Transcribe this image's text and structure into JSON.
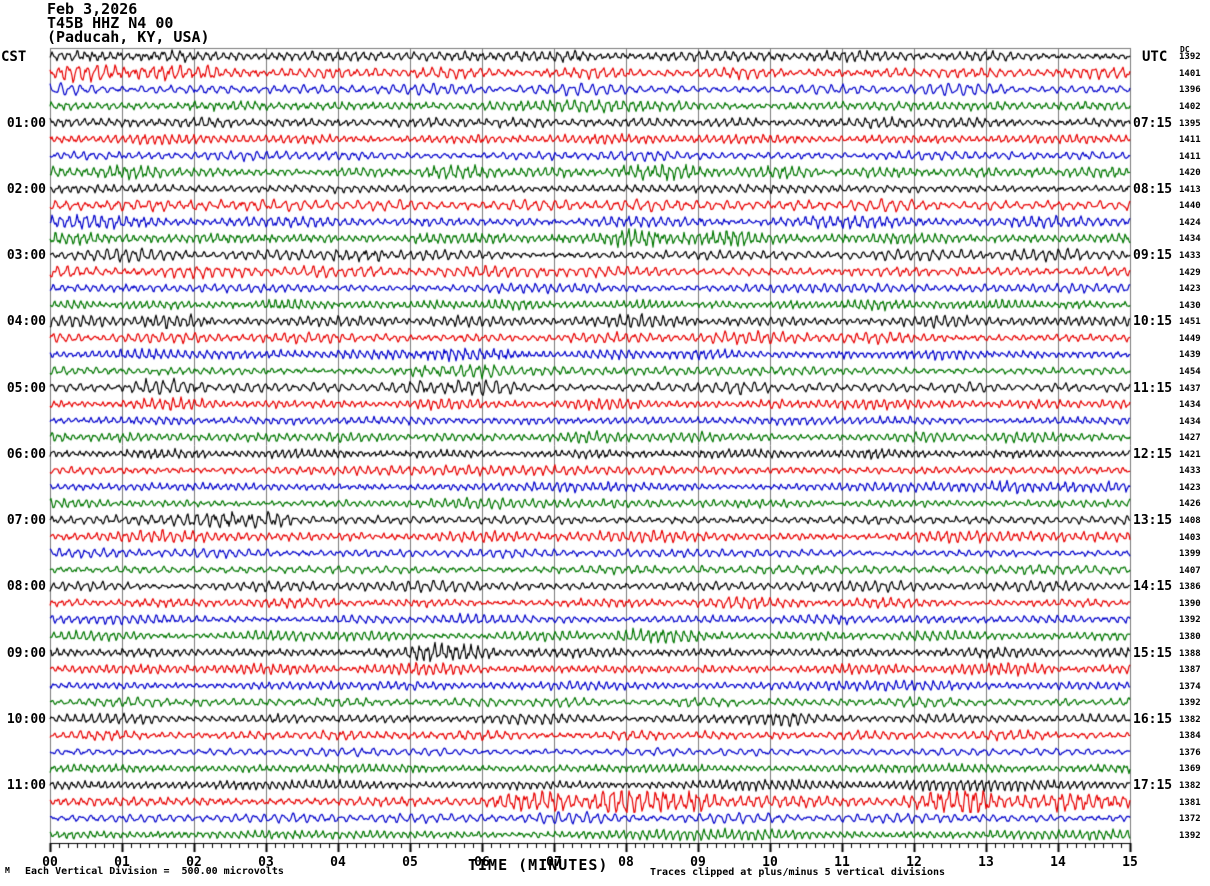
{
  "header": {
    "date": "Feb 3,2026",
    "station": "T45B HHZ N4 00",
    "location": "(Paducah, KY, USA)"
  },
  "axes": {
    "left_timezone": "CST",
    "right_timezone": "UTC",
    "dc_header": "DC",
    "hour_label_rows": [
      4,
      8,
      12,
      16,
      20,
      24,
      28,
      32,
      36,
      40,
      44
    ],
    "left_hour_labels": [
      "01:00",
      "02:00",
      "03:00",
      "04:00",
      "05:00",
      "06:00",
      "07:00",
      "08:00",
      "09:00",
      "10:00",
      "11:00"
    ],
    "right_hour_labels": [
      "07:15",
      "08:15",
      "09:15",
      "10:15",
      "11:15",
      "12:15",
      "13:15",
      "14:15",
      "15:15",
      "16:15",
      "17:15"
    ],
    "x_tick_labels": [
      "00",
      "01",
      "02",
      "03",
      "04",
      "05",
      "06",
      "07",
      "08",
      "09",
      "10",
      "11",
      "12",
      "13",
      "14",
      "15"
    ],
    "x_axis_title": "TIME (MINUTES)"
  },
  "footer": {
    "mark": "M",
    "left_note": "Each Vertical Division =  500.00 microvolts",
    "right_note": "Traces clipped at plus/minus 5 vertical divisions"
  },
  "chart_data": {
    "type": "line",
    "subtype": "helicorder-seismogram",
    "title": "T45B HHZ N4 00 (Paducah, KY, USA) webicorder record, Feb 3,2026",
    "xlabel": "TIME (MINUTES)",
    "x_range_minutes": [
      0,
      15
    ],
    "minutes_per_row": 15,
    "rows": 48,
    "rows_per_hour": 4,
    "first_row_start_cst": "00:00",
    "first_row_end_utc": "06:15",
    "grid": "vertical line each minute",
    "microvolts_per_division": 500.0,
    "clip_divisions": 5,
    "trace_colors": [
      "#000000",
      "#e80000",
      "#0000cc",
      "#007700"
    ],
    "grid_color": "#7a7a7a",
    "axis_color": "#000000",
    "seed": 20260203,
    "dc_offsets": [
      1392,
      1401,
      1396,
      1402,
      1395,
      1411,
      1411,
      1420,
      1413,
      1440,
      1424,
      1434,
      1433,
      1429,
      1423,
      1430,
      1451,
      1449,
      1439,
      1454,
      1437,
      1434,
      1434,
      1427,
      1421,
      1433,
      1423,
      1426,
      1408,
      1403,
      1399,
      1407,
      1386,
      1390,
      1392,
      1380,
      1388,
      1387,
      1374,
      1392,
      1382,
      1384,
      1376,
      1369,
      1382,
      1381,
      1372,
      1392
    ],
    "row_amplitude": [
      1.05,
      1.1,
      0.95,
      1.0,
      1.05,
      1.0,
      0.95,
      1.05,
      1.0,
      1.2,
      1.1,
      1.05,
      1.05,
      1.1,
      0.95,
      1.0,
      1.05,
      1.0,
      1.0,
      1.05,
      1.05,
      1.0,
      0.95,
      1.0,
      1.0,
      0.95,
      0.95,
      0.95,
      1.05,
      1.05,
      0.95,
      0.95,
      1.0,
      0.9,
      0.9,
      0.95,
      0.95,
      0.95,
      0.9,
      0.9,
      0.95,
      0.9,
      0.85,
      0.85,
      1.0,
      1.0,
      0.9,
      0.9
    ],
    "bursts": {
      "0": [
        [
          0.3,
          1.8,
          1.5
        ],
        [
          6.4,
          7.4,
          1.4
        ]
      ],
      "1": [
        [
          0.2,
          2.3,
          1.7
        ]
      ],
      "3": [
        [
          1.9,
          2.9,
          1.6
        ]
      ],
      "7": [
        [
          7.9,
          8.8,
          2.1
        ]
      ],
      "9": [
        [
          0.5,
          3.0,
          1.3
        ]
      ],
      "11": [
        [
          7.9,
          9.7,
          1.8
        ]
      ],
      "12": [
        [
          4.0,
          4.6,
          1.9
        ]
      ],
      "16": [
        [
          1.2,
          2.2,
          1.5
        ]
      ],
      "18": [
        [
          4.9,
          6.5,
          1.9
        ]
      ],
      "19": [
        [
          4.9,
          6.3,
          1.7
        ]
      ],
      "20": [
        [
          1.1,
          2.1,
          1.9
        ],
        [
          5.0,
          6.4,
          1.5
        ]
      ],
      "26": [
        [
          13.2,
          14.9,
          1.6
        ]
      ],
      "28": [
        [
          1.8,
          3.3,
          2.1
        ]
      ],
      "35": [
        [
          7.9,
          9.2,
          1.6
        ]
      ],
      "36": [
        [
          5.1,
          6.1,
          1.8
        ]
      ],
      "40": [
        [
          9.5,
          10.5,
          1.5
        ]
      ],
      "45": [
        [
          6.2,
          7.1,
          1.9
        ],
        [
          7.7,
          9.1,
          2.7
        ],
        [
          11.8,
          12.95,
          2.4
        ],
        [
          14.0,
          15.0,
          2.0
        ]
      ]
    }
  }
}
